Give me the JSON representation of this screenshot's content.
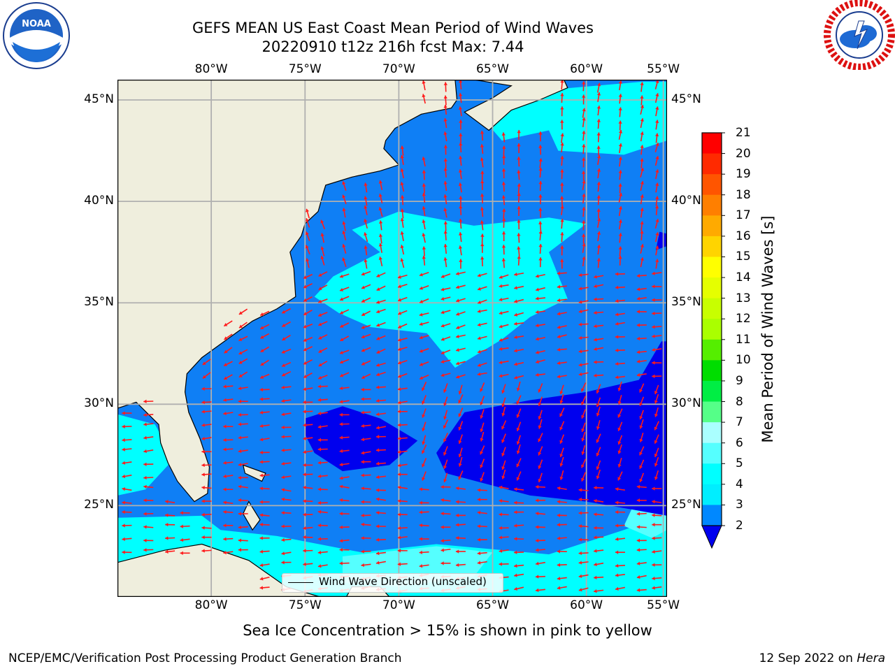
{
  "header": {
    "title": "GEFS MEAN US East Coast Mean Period of Wind Waves",
    "subtitle": "20220910 t12z 216h fcst   Max: 7.44"
  },
  "logos": {
    "left": {
      "icon": "noaa-logo",
      "text": "NOAA"
    },
    "right": {
      "icon": "nws-logo"
    }
  },
  "map": {
    "lon_ticks": [
      "80°W",
      "75°W",
      "70°W",
      "65°W",
      "60°W",
      "55°W"
    ],
    "lat_ticks": [
      "45°N",
      "40°N",
      "35°N",
      "30°N",
      "25°N"
    ],
    "lon_range": [
      -85,
      -55.7
    ],
    "lat_range": [
      20.5,
      46
    ],
    "gridlines": true,
    "legend": {
      "label": "Wind Wave Direction (unscaled)",
      "placement": "bottom-center"
    },
    "colors": {
      "land": "#efeedd",
      "coast": "#000000",
      "arrows": "#ff1a1a",
      "grid": "#b0b0b0"
    }
  },
  "colorbar": {
    "label": "Mean Period of Wind Waves [s]",
    "ticks": [
      "21",
      "20",
      "19",
      "18",
      "17",
      "16",
      "15",
      "14",
      "13",
      "12",
      "11",
      "10",
      "9",
      "8",
      "7",
      "6",
      "5",
      "4",
      "3",
      "2"
    ],
    "bin_colors": [
      "#ff0000",
      "#ff2a00",
      "#ff5500",
      "#ff7f00",
      "#ffaa00",
      "#ffd400",
      "#ffff00",
      "#e5ff00",
      "#c8ff00",
      "#aaff00",
      "#55ee00",
      "#00dd00",
      "#00ee44",
      "#55ff88",
      "#aaffff",
      "#55ffff",
      "#00ffff",
      "#00eeff",
      "#0088ff",
      "#0000ee"
    ],
    "extend_color": "#0000ee"
  },
  "footer": {
    "note": "Sea Ice Concentration > 15% is shown in pink to yellow",
    "left": "NCEP/EMC/Verification Post Processing Product Generation Branch",
    "right_date": "12 Sep 2022 on",
    "right_host": "Hera"
  }
}
